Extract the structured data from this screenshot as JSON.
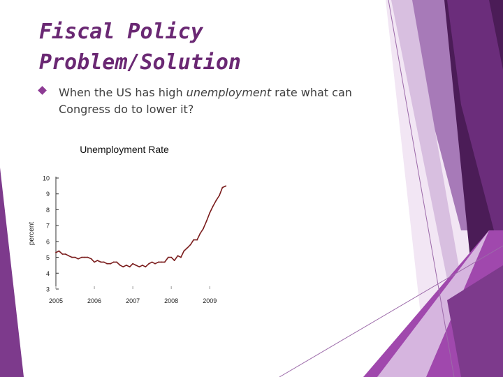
{
  "slide": {
    "title_line1": "Fiscal Policy",
    "title_line2": "Problem/Solution",
    "bullet": {
      "before": "When the US has high ",
      "emphasis": "unemployment",
      "after": " rate what can Congress do to lower it?"
    }
  },
  "colors": {
    "title": "#6a2873",
    "bullet_marker": "#8d3b94",
    "body_text": "#404040",
    "series_line": "#7a1c1c",
    "deco_dark": "#4b1c57",
    "deco_mid": "#7d3a8c",
    "deco_light": "#c9a2d4",
    "deco_bright": "#a048ad"
  },
  "chart_data": {
    "type": "line",
    "title": "Unemployment Rate",
    "ylabel": "percent",
    "xlabel": "",
    "ylim": [
      3,
      10
    ],
    "xlim": [
      2005,
      2009.45
    ],
    "yticks": [
      "3",
      "4",
      "5",
      "6",
      "7",
      "8",
      "9",
      "10"
    ],
    "xticks": [
      "2005",
      "2006",
      "2007",
      "2008",
      "2009"
    ],
    "grid": false,
    "series": [
      {
        "x": [
          2005.0,
          2005.08,
          2005.17,
          2005.25,
          2005.33,
          2005.42,
          2005.5,
          2005.58,
          2005.67,
          2005.75,
          2005.83,
          2005.92,
          2006.0,
          2006.08,
          2006.17,
          2006.25,
          2006.33,
          2006.42,
          2006.5,
          2006.58,
          2006.67,
          2006.75,
          2006.83,
          2006.92,
          2007.0,
          2007.08,
          2007.17,
          2007.25,
          2007.33,
          2007.42,
          2007.5,
          2007.58,
          2007.67,
          2007.75,
          2007.83,
          2007.92,
          2008.0,
          2008.08,
          2008.17,
          2008.25,
          2008.33,
          2008.42,
          2008.5,
          2008.58,
          2008.67,
          2008.75,
          2008.83,
          2008.92,
          2009.0,
          2009.08,
          2009.17,
          2009.25,
          2009.33,
          2009.42
        ],
        "y": [
          5.3,
          5.4,
          5.2,
          5.2,
          5.1,
          5.0,
          5.0,
          4.9,
          5.0,
          5.0,
          5.0,
          4.9,
          4.7,
          4.8,
          4.7,
          4.7,
          4.6,
          4.6,
          4.7,
          4.7,
          4.5,
          4.4,
          4.5,
          4.4,
          4.6,
          4.5,
          4.4,
          4.5,
          4.4,
          4.6,
          4.7,
          4.6,
          4.7,
          4.7,
          4.7,
          5.0,
          5.0,
          4.8,
          5.1,
          5.0,
          5.4,
          5.6,
          5.8,
          6.1,
          6.1,
          6.5,
          6.8,
          7.3,
          7.8,
          8.2,
          8.6,
          8.9,
          9.4,
          9.5
        ]
      }
    ]
  }
}
